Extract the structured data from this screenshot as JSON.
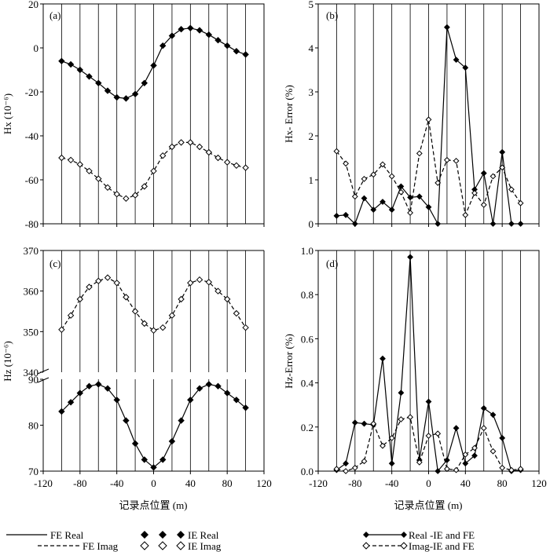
{
  "chart_data": [
    {
      "panel": "(a)",
      "type": "line",
      "ylabel": "Hx (10⁻⁶)",
      "xlim": [
        -120,
        120
      ],
      "ylim": [
        -80,
        20
      ],
      "xticks": [
        "",
        "",
        "",
        "",
        "",
        "",
        ""
      ],
      "yticks": [
        "20",
        "0",
        "-20",
        "-40",
        "-60",
        "-80"
      ],
      "x": [
        -100,
        -90,
        -80,
        -70,
        -60,
        -50,
        -40,
        -30,
        -20,
        -10,
        0,
        10,
        20,
        30,
        40,
        50,
        60,
        70,
        80,
        90,
        100
      ],
      "series": [
        {
          "name": "FE Real",
          "values": [
            -6,
            -7.5,
            -10,
            -13,
            -16,
            -19.5,
            -22.5,
            -23,
            -21,
            -16,
            -8,
            1,
            5.5,
            8.5,
            9,
            8,
            6,
            3.5,
            1,
            -1.5,
            -3
          ]
        },
        {
          "name": "IE Real",
          "values": [
            -6,
            -7.5,
            -10,
            -13,
            -16,
            -19.5,
            -22.5,
            -23,
            -21,
            -16,
            -8,
            1,
            5.5,
            8.5,
            9,
            8,
            6,
            3.5,
            1,
            -1.5,
            -3
          ]
        },
        {
          "name": "FE Imag",
          "values": [
            -50,
            -51,
            -53,
            -56,
            -59.5,
            -63.5,
            -66.5,
            -68.5,
            -67,
            -63,
            -56,
            -49,
            -45,
            -43,
            -43,
            -45,
            -47.5,
            -50,
            -52,
            -53.5,
            -54.5
          ]
        },
        {
          "name": "IE Imag",
          "values": [
            -50,
            -51,
            -53,
            -56,
            -59.5,
            -63.5,
            -66.5,
            -68.5,
            -67,
            -63,
            -56,
            -49,
            -45,
            -43,
            -43,
            -45,
            -47.5,
            -50,
            -52,
            -53.5,
            -54.5
          ]
        }
      ]
    },
    {
      "panel": "(b)",
      "type": "line",
      "ylabel": "Hx- Error (%)",
      "xlim": [
        -120,
        120
      ],
      "ylim": [
        0,
        5
      ],
      "xticks": [
        "",
        "",
        "",
        "",
        "",
        "",
        ""
      ],
      "yticks": [
        "5",
        "4",
        "3",
        "2",
        "1",
        "0"
      ],
      "x": [
        -100,
        -90,
        -80,
        -70,
        -60,
        -50,
        -40,
        -30,
        -20,
        -10,
        0,
        10,
        20,
        30,
        40,
        50,
        60,
        70,
        80,
        90,
        100
      ],
      "series": [
        {
          "name": "Real -IE and FE",
          "values": [
            0.18,
            0.2,
            0.0,
            0.58,
            0.32,
            0.5,
            0.32,
            0.85,
            0.6,
            0.62,
            0.38,
            0.0,
            4.47,
            3.73,
            3.55,
            0.78,
            1.15,
            0.0,
            1.63,
            0.0,
            0.0
          ]
        },
        {
          "name": "Imag-IE and FE",
          "values": [
            1.65,
            1.37,
            0.62,
            1.02,
            1.12,
            1.35,
            1.08,
            0.72,
            0.25,
            1.6,
            2.37,
            0.93,
            1.45,
            1.43,
            0.2,
            0.7,
            0.43,
            1.08,
            1.28,
            0.78,
            0.47
          ]
        }
      ]
    },
    {
      "panel": "(c)",
      "type": "line",
      "ylabel": "Hz (10⁻⁶)",
      "xlim": [
        -120,
        120
      ],
      "ylim_upper": [
        340,
        370
      ],
      "ylim_lower": [
        70,
        90
      ],
      "xticks": [
        "-120",
        "-80",
        "-40",
        "0",
        "40",
        "80",
        "120"
      ],
      "yticks_upper": [
        "370",
        "360",
        "350",
        "340"
      ],
      "yticks_lower": [
        "90",
        "80",
        "70"
      ],
      "xlabel": "记录点位置 (m)",
      "x": [
        -100,
        -90,
        -80,
        -70,
        -60,
        -50,
        -40,
        -30,
        -20,
        -10,
        0,
        10,
        20,
        30,
        40,
        50,
        60,
        70,
        80,
        90,
        100
      ],
      "series": [
        {
          "name": "FE Real",
          "values": [
            83,
            85,
            87,
            88.5,
            88.9,
            88,
            85.5,
            81,
            76,
            72.5,
            70.8,
            72.5,
            76.5,
            81,
            85.5,
            88,
            88.9,
            88.5,
            87,
            85.5,
            83.8
          ]
        },
        {
          "name": "IE Real",
          "values": [
            83,
            85,
            87,
            88.5,
            88.9,
            88,
            85.5,
            81,
            76,
            72.5,
            70.8,
            72.5,
            76.5,
            81,
            85.5,
            88,
            88.9,
            88.5,
            87,
            85.5,
            83.8
          ]
        },
        {
          "name": "FE Imag",
          "values": [
            350.5,
            354,
            358,
            361,
            362.5,
            363.3,
            362,
            358.5,
            355,
            352,
            350.3,
            351,
            354,
            358,
            362,
            362.8,
            362.2,
            360,
            358,
            354.5,
            351
          ]
        },
        {
          "name": "IE Imag",
          "values": [
            350.5,
            354,
            358,
            361,
            362.5,
            363.3,
            362,
            358.5,
            355,
            352,
            350.3,
            351,
            354,
            358,
            362,
            362.8,
            362.2,
            360,
            358,
            354.5,
            351
          ]
        }
      ]
    },
    {
      "panel": "(d)",
      "type": "line",
      "ylabel": "Hz-Error (%)",
      "xlim": [
        -120,
        120
      ],
      "ylim": [
        0,
        1
      ],
      "xticks": [
        "-120",
        "-80",
        "-40",
        "0",
        "40",
        "80",
        "120"
      ],
      "yticks": [
        "1.0",
        "0.8",
        "0.6",
        "0.4",
        "0.2",
        "0.0"
      ],
      "xlabel": "记录点位置 (m)",
      "x": [
        -100,
        -90,
        -80,
        -70,
        -60,
        -50,
        -40,
        -30,
        -20,
        -10,
        0,
        10,
        20,
        30,
        40,
        50,
        60,
        70,
        80,
        90,
        100
      ],
      "series": [
        {
          "name": "Real -IE and FE",
          "values": [
            0.005,
            0.035,
            0.22,
            0.215,
            0.21,
            0.51,
            0.035,
            0.355,
            0.97,
            0.05,
            0.315,
            0.0,
            0.05,
            0.195,
            0.035,
            0.07,
            0.285,
            0.255,
            0.15,
            0.0,
            0.005
          ]
        },
        {
          "name": "Imag-IE and FE",
          "values": [
            0.01,
            0.0,
            0.015,
            0.045,
            0.215,
            0.115,
            0.15,
            0.235,
            0.245,
            0.04,
            0.16,
            0.17,
            0.01,
            0.005,
            0.075,
            0.105,
            0.195,
            0.09,
            0.015,
            0.005,
            0.01
          ]
        }
      ]
    }
  ],
  "legend_left": {
    "fe_real": "FE Real",
    "ie_real": "IE Real",
    "fe_imag": "FE Imag",
    "ie_imag": "IE Imag"
  },
  "legend_right": {
    "real": "Real -IE and FE",
    "imag": "Imag-IE and FE"
  },
  "colors": {
    "line": "#000000",
    "grid": "#000000",
    "background": "#ffffff"
  }
}
